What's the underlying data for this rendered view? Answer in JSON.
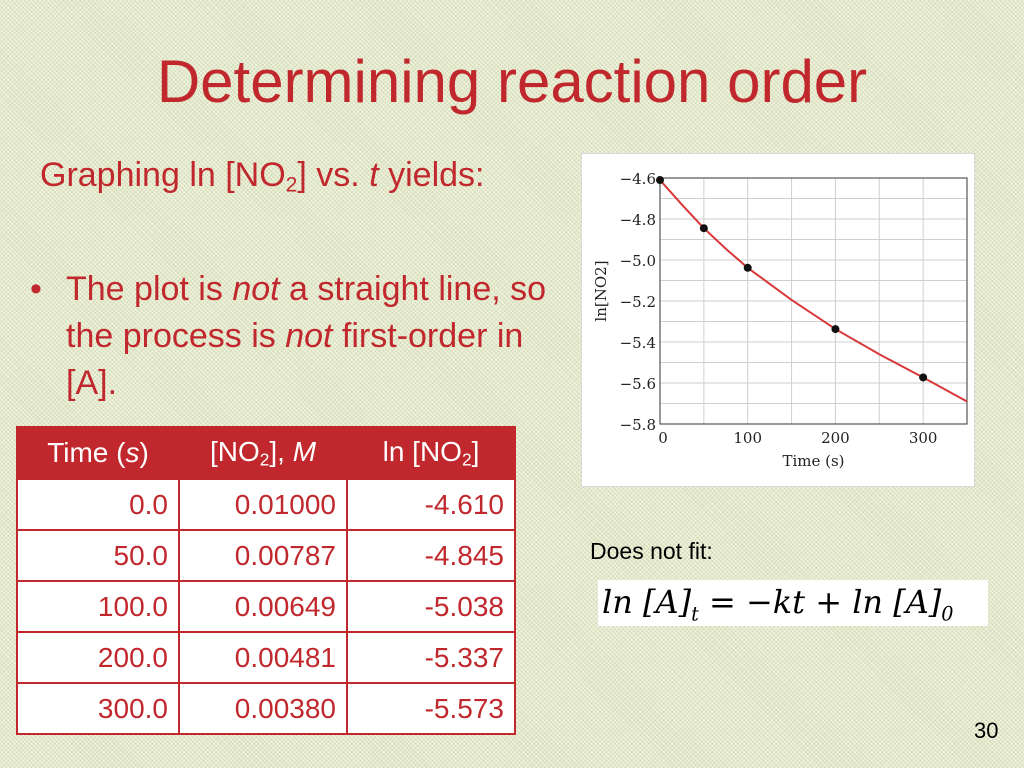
{
  "slide": {
    "title": "Determining reaction order",
    "subtitle": {
      "pre": "Graphing ln [NO",
      "sub": "2",
      "mid": "] vs. ",
      "var": "t",
      "post": " yields:"
    },
    "bullet": {
      "marker": "•",
      "parts": [
        "The plot is ",
        "not",
        " a straight line, so the process is ",
        "not",
        " first-order in [A]."
      ]
    },
    "table": {
      "headers": {
        "time": {
          "pre": "Time (",
          "unit": "s",
          "post": ")"
        },
        "conc": {
          "pre": "[NO",
          "sub": "2",
          "post": "], ",
          "unit": "M"
        },
        "ln": {
          "pre": "ln [NO",
          "sub": "2",
          "post": "]"
        }
      },
      "rows": [
        [
          "0.0",
          "0.01000",
          "-4.610"
        ],
        [
          "50.0",
          "0.00787",
          "-4.845"
        ],
        [
          "100.0",
          "0.00649",
          "-5.038"
        ],
        [
          "200.0",
          "0.00481",
          "-5.337"
        ],
        [
          "300.0",
          "0.00380",
          "-5.573"
        ]
      ]
    },
    "fit_label": "Does not fit:",
    "equation": "ln [A]t = −kt + ln [A]0",
    "page_number": "30",
    "colors": {
      "accent": "#c0282d",
      "curve": "#d9383a",
      "background": "#e3e9c9"
    }
  },
  "chart_data": {
    "type": "scatter",
    "xlabel": "Time (s)",
    "ylabel": "ln[NO2]",
    "xlim": [
      0,
      350
    ],
    "ylim": [
      -5.8,
      -4.6
    ],
    "x_ticks": [
      "0",
      "100",
      "200",
      "300"
    ],
    "y_ticks": [
      "−4.6",
      "−4.8",
      "−5.0",
      "−5.2",
      "−5.4",
      "−5.6",
      "−5.8"
    ],
    "grid": true,
    "series": [
      {
        "x": [
          0,
          50,
          100,
          200,
          300
        ],
        "y": [
          -4.61,
          -4.845,
          -5.038,
          -5.337,
          -5.573
        ]
      }
    ],
    "curve": {
      "x": [
        0,
        25,
        50,
        75,
        100,
        150,
        200,
        250,
        300,
        350
      ],
      "y": [
        -4.61,
        -4.73,
        -4.845,
        -4.945,
        -5.038,
        -5.195,
        -5.337,
        -5.46,
        -5.573,
        -5.69
      ]
    }
  }
}
